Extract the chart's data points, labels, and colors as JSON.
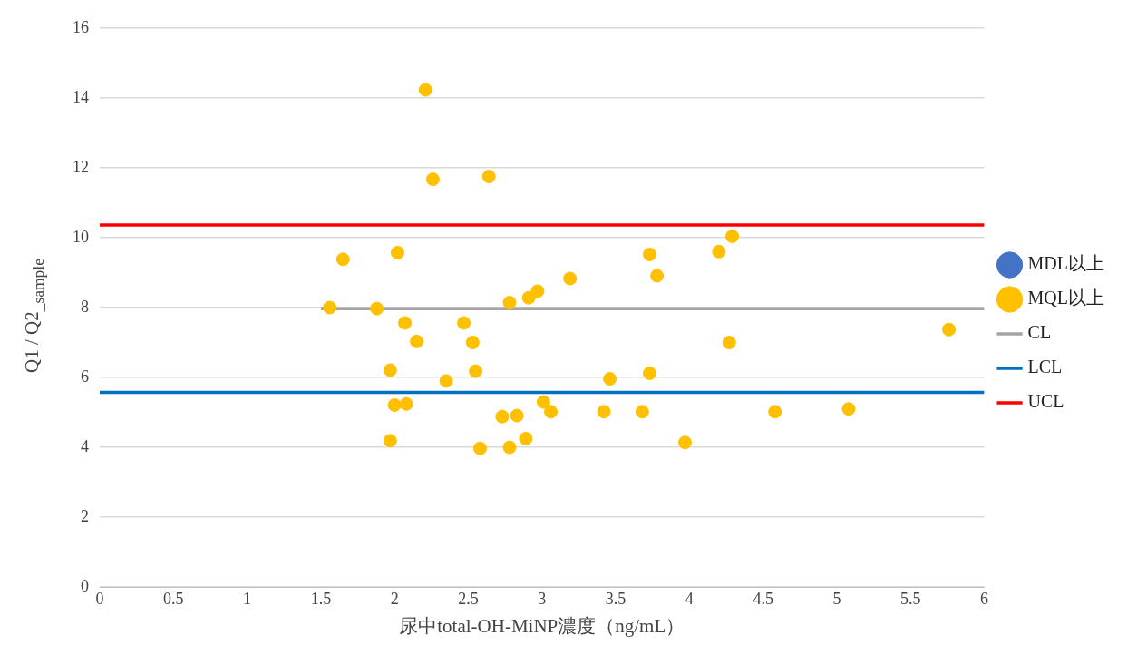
{
  "chart_data": {
    "type": "scatter",
    "xlabel": "尿中total-OH-MiNP濃度（ng/mL）",
    "ylabel": "Q1 / Q2$_{_sample}$",
    "xlim": [
      0,
      6
    ],
    "xticks": [
      0,
      0.5,
      1,
      1.5,
      2,
      2.5,
      3,
      3.5,
      4,
      4.5,
      5,
      5.5,
      6
    ],
    "ylim": [
      0,
      16
    ],
    "yticks": [
      0,
      2,
      4,
      6,
      8,
      10,
      12,
      14,
      16
    ],
    "grid": "y",
    "legend": "right",
    "series": [
      {
        "name": "MDL以上",
        "color": "#4472c4",
        "marker": "circle"
      },
      {
        "name": "MQL以上",
        "color": "#ffc000",
        "marker": "circle",
        "x": [
          1.56,
          1.65,
          1.88,
          1.97,
          1.97,
          2.0,
          2.02,
          2.07,
          2.08,
          2.15,
          2.21,
          2.26,
          2.35,
          2.47,
          2.53,
          2.55,
          2.58,
          2.64,
          2.73,
          2.78,
          2.78,
          2.83,
          2.89,
          2.91,
          2.97,
          3.01,
          3.06,
          3.19,
          3.42,
          3.46,
          3.68,
          3.73,
          3.73,
          3.78,
          3.97,
          4.2,
          4.27,
          4.29,
          4.58,
          5.08,
          5.76
        ],
        "values": [
          8.0,
          9.38,
          7.97,
          6.21,
          4.19,
          5.21,
          9.57,
          7.56,
          5.24,
          7.03,
          14.23,
          11.67,
          5.9,
          7.56,
          7.0,
          6.18,
          3.97,
          11.75,
          4.88,
          8.14,
          4.0,
          4.91,
          4.25,
          8.28,
          8.47,
          5.3,
          5.02,
          8.83,
          5.02,
          5.96,
          5.02,
          9.52,
          6.12,
          8.91,
          4.14,
          9.6,
          7.0,
          10.04,
          5.02,
          5.1,
          7.37
        ]
      },
      {
        "name": "CL",
        "type": "line",
        "color": "#a5a5a5",
        "x": [
          1.5,
          6
        ],
        "values": [
          7.97,
          7.97
        ]
      },
      {
        "name": "LCL",
        "type": "line",
        "color": "#0070c0",
        "x": [
          0,
          6
        ],
        "values": [
          5.57,
          5.57
        ]
      },
      {
        "name": "UCL",
        "type": "line",
        "color": "#ff0000",
        "x": [
          0,
          6
        ],
        "values": [
          10.36,
          10.36
        ]
      }
    ]
  }
}
